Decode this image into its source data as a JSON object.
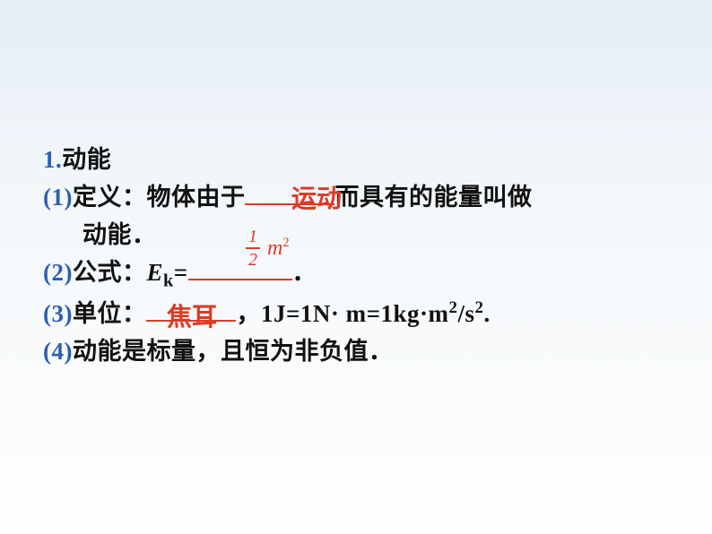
{
  "colors": {
    "blue": "#2e5fb0",
    "red": "#dd3a26",
    "black": "#111111",
    "blank_red": "#dd3a26"
  },
  "font_size": {
    "main": 27
  },
  "blank_widths": {
    "b1": 100,
    "b2": 116,
    "b3": 100
  },
  "header": {
    "num": "1.",
    "title": "动能"
  },
  "item1": {
    "num": "(1)",
    "pre": "定义：物体由于",
    "post": "而具有的能量叫做",
    "cont": "动能．"
  },
  "item2": {
    "num": "(2)",
    "pre": "公式：",
    "ek_e": "E",
    "ek_k": "k",
    "eq": "=",
    "dot": "．"
  },
  "item3": {
    "num": "(3)",
    "pre": "单位：",
    "post": "，1J=1N· m=1kg·m",
    "sup2a": "2",
    "slashs": "/s",
    "sup2b": "2",
    "dot": "."
  },
  "item4": {
    "num": "(4)",
    "text": "动能是标量，且恒为非负值．"
  },
  "annotations": {
    "a1": "运动",
    "a3": "焦耳"
  },
  "frac": {
    "num": "1",
    "den": "2",
    "m": "m",
    "sq": "2"
  }
}
